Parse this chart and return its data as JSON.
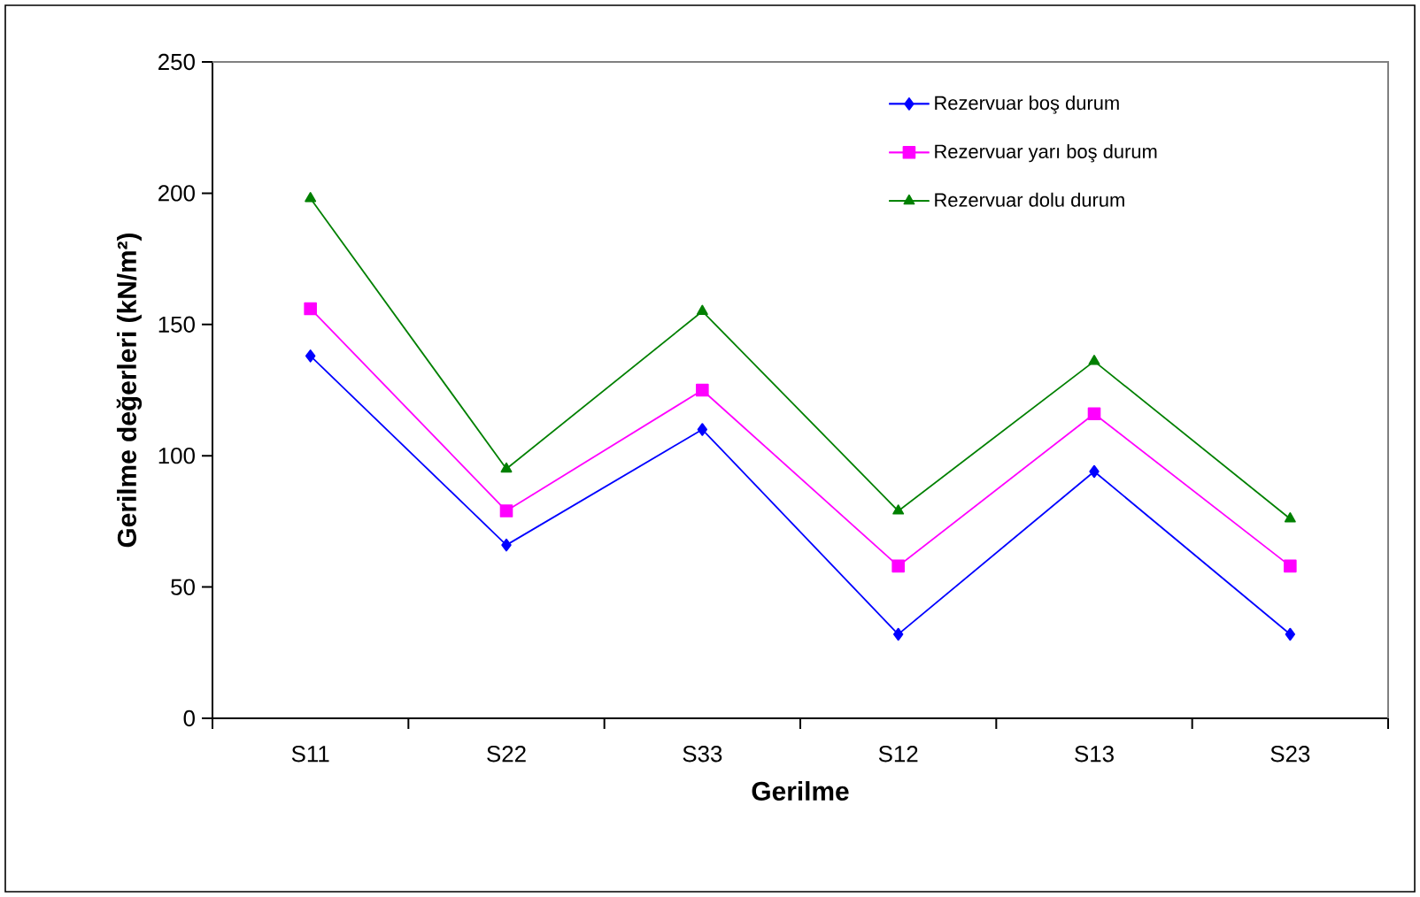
{
  "chart_data": {
    "type": "line",
    "xlabel": "Gerilme",
    "ylabel": "Gerilme değerleri (kN/m²)",
    "categories": [
      "S11",
      "S22",
      "S33",
      "S12",
      "S13",
      "S23"
    ],
    "series": [
      {
        "name": "Rezervuar boş durum",
        "color": "#0000ff",
        "marker": "diamond",
        "values": [
          138,
          66,
          110,
          32,
          94,
          32
        ]
      },
      {
        "name": "Rezervuar yarı boş durum",
        "color": "#ff00ff",
        "marker": "square",
        "values": [
          156,
          79,
          125,
          58,
          116,
          58
        ]
      },
      {
        "name": "Rezervuar dolu durum",
        "color": "#008000",
        "marker": "triangle",
        "values": [
          198,
          95,
          155,
          79,
          136,
          76
        ]
      }
    ],
    "ylim": [
      0,
      250
    ],
    "yticks": [
      0,
      50,
      100,
      150,
      200,
      250
    ],
    "grid": false,
    "legend": "top right",
    "line_style": "solid"
  }
}
